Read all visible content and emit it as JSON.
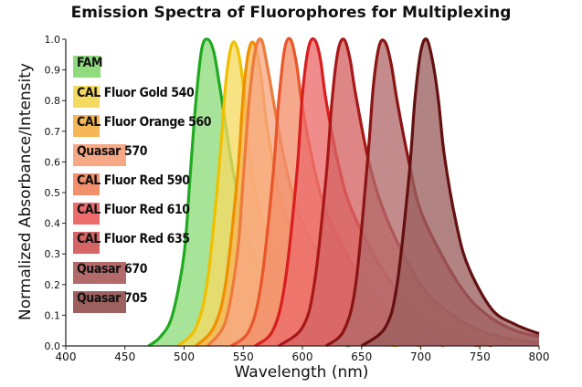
{
  "chart_data": {
    "type": "area",
    "title": "Emission Spectra of Fluorophores for Multiplexing",
    "xlabel": "Wavelength (nm)",
    "ylabel": "Normalized Absorbance/Intensity",
    "xlim": [
      400,
      800
    ],
    "ylim": [
      0,
      1
    ],
    "xticks": [
      "400",
      "450",
      "500",
      "550",
      "600",
      "650",
      "700",
      "750",
      "800"
    ],
    "yticks": [
      "0.0",
      "0.1",
      "0.2",
      "0.3",
      "0.4",
      "0.5",
      "0.6",
      "0.7",
      "0.8",
      "0.9",
      "1.0"
    ],
    "grid": false,
    "legend_position": "left",
    "series": [
      {
        "name": "FAM",
        "prefix": "FAM",
        "suffix": "",
        "fill": "#8fdb7e",
        "stroke": "#1faa1f",
        "x": [
          470,
          480,
          490,
          500,
          505,
          510,
          515,
          520,
          525,
          530,
          540,
          550,
          560,
          580,
          600,
          620,
          640
        ],
        "y": [
          0.0,
          0.03,
          0.1,
          0.3,
          0.55,
          0.8,
          0.97,
          1.0,
          0.96,
          0.85,
          0.6,
          0.4,
          0.28,
          0.14,
          0.06,
          0.02,
          0.0
        ]
      },
      {
        "name": "CAL Fluor Gold 540",
        "prefix": "CAL",
        "suffix": "Fluor Gold 540",
        "fill": "#f5da62",
        "stroke": "#f0c000",
        "x": [
          495,
          510,
          520,
          530,
          535,
          540,
          545,
          550,
          555,
          560,
          570,
          580,
          600,
          620,
          650,
          680
        ],
        "y": [
          0.0,
          0.06,
          0.22,
          0.6,
          0.85,
          0.98,
          0.97,
          0.85,
          0.65,
          0.5,
          0.36,
          0.27,
          0.15,
          0.08,
          0.02,
          0.0
        ]
      },
      {
        "name": "CAL Fluor Orange 560",
        "prefix": "CAL",
        "suffix": "Fluor Orange 560",
        "fill": "#f6b656",
        "stroke": "#ef9000",
        "x": [
          510,
          525,
          535,
          545,
          550,
          555,
          560,
          565,
          570,
          580,
          590,
          600,
          620,
          650,
          680,
          700
        ],
        "y": [
          0.0,
          0.06,
          0.2,
          0.55,
          0.82,
          0.97,
          0.98,
          0.88,
          0.72,
          0.5,
          0.38,
          0.28,
          0.16,
          0.06,
          0.02,
          0.0
        ]
      },
      {
        "name": "Quasar 570",
        "prefix": "Quasar",
        "suffix": "570",
        "fill": "#f7a884",
        "stroke": "#ee7a3c",
        "x": [
          520,
          535,
          545,
          550,
          555,
          560,
          565,
          570,
          580,
          590,
          600,
          620,
          640,
          660,
          690,
          720
        ],
        "y": [
          0.0,
          0.08,
          0.3,
          0.55,
          0.8,
          0.96,
          1.0,
          0.92,
          0.7,
          0.52,
          0.4,
          0.26,
          0.16,
          0.09,
          0.03,
          0.0
        ]
      },
      {
        "name": "CAL Fluor Red 590",
        "prefix": "CAL",
        "suffix": "Fluor Red 590",
        "fill": "#f2906c",
        "stroke": "#e8562a",
        "x": [
          540,
          555,
          565,
          575,
          580,
          585,
          590,
          595,
          600,
          610,
          620,
          640,
          660,
          690,
          720,
          750
        ],
        "y": [
          0.0,
          0.05,
          0.2,
          0.55,
          0.8,
          0.97,
          1.0,
          0.92,
          0.78,
          0.58,
          0.44,
          0.28,
          0.16,
          0.06,
          0.02,
          0.0
        ]
      },
      {
        "name": "CAL Fluor Red 610",
        "prefix": "CAL",
        "suffix": "Fluor Red 610",
        "fill": "#ec6c6c",
        "stroke": "#d81e1e",
        "x": [
          560,
          575,
          585,
          595,
          600,
          605,
          610,
          615,
          620,
          630,
          640,
          660,
          680,
          700,
          730,
          760
        ],
        "y": [
          0.0,
          0.05,
          0.2,
          0.55,
          0.82,
          0.97,
          1.0,
          0.94,
          0.8,
          0.6,
          0.46,
          0.3,
          0.18,
          0.1,
          0.04,
          0.0
        ]
      },
      {
        "name": "CAL Fluor Red 635",
        "prefix": "CAL",
        "suffix": "Fluor Red 635",
        "fill": "#d56464",
        "stroke": "#a81818",
        "x": [
          580,
          600,
          610,
          620,
          625,
          630,
          635,
          640,
          645,
          655,
          665,
          680,
          700,
          720,
          750,
          780,
          800
        ],
        "y": [
          0.0,
          0.06,
          0.2,
          0.55,
          0.8,
          0.96,
          1.0,
          0.94,
          0.82,
          0.62,
          0.48,
          0.34,
          0.2,
          0.12,
          0.05,
          0.02,
          0.01
        ]
      },
      {
        "name": "Quasar 670",
        "prefix": "Quasar",
        "suffix": "670",
        "fill": "#b26a6a",
        "stroke": "#8c1414",
        "x": [
          620,
          635,
          645,
          655,
          660,
          665,
          670,
          675,
          680,
          690,
          700,
          720,
          740,
          760,
          780,
          800
        ],
        "y": [
          0.0,
          0.05,
          0.2,
          0.6,
          0.85,
          0.98,
          0.99,
          0.92,
          0.8,
          0.6,
          0.44,
          0.28,
          0.16,
          0.09,
          0.05,
          0.03
        ]
      },
      {
        "name": "Quasar 705",
        "prefix": "Quasar",
        "suffix": "705",
        "fill": "#9c6060",
        "stroke": "#641010",
        "x": [
          650,
          670,
          680,
          690,
          695,
          700,
          705,
          710,
          715,
          720,
          730,
          740,
          760,
          780,
          800
        ],
        "y": [
          0.0,
          0.06,
          0.2,
          0.55,
          0.8,
          0.96,
          1.0,
          0.93,
          0.8,
          0.62,
          0.4,
          0.26,
          0.12,
          0.07,
          0.04
        ]
      }
    ]
  }
}
